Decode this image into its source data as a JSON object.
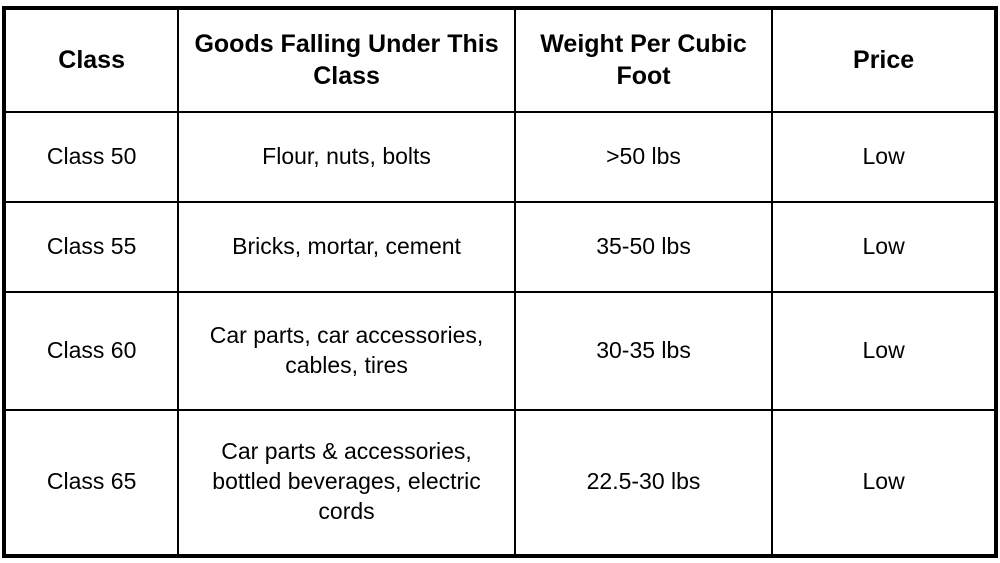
{
  "table": {
    "type": "table",
    "background_color": "#ffffff",
    "border_color": "#000000",
    "border_width": 2,
    "header_fontsize": 25,
    "header_fontweight": 700,
    "cell_fontsize": 23,
    "cell_fontweight": 400,
    "text_color": "#000000",
    "columns": [
      {
        "key": "class",
        "label": "Class",
        "width_pct": 17.5,
        "align": "center"
      },
      {
        "key": "goods",
        "label": "Goods Falling Under This Class",
        "width_pct": 34,
        "align": "center"
      },
      {
        "key": "weight",
        "label": "Weight Per Cubic Foot",
        "width_pct": 26,
        "align": "center"
      },
      {
        "key": "price",
        "label": "Price",
        "width_pct": 22.5,
        "align": "center"
      }
    ],
    "rows": [
      {
        "class": "Class 50",
        "goods": "Flour, nuts, bolts",
        "weight": ">50 lbs",
        "price": "Low"
      },
      {
        "class": "Class 55",
        "goods": "Bricks, mortar, cement",
        "weight": "35-50 lbs",
        "price": "Low"
      },
      {
        "class": "Class 60",
        "goods": "Car parts, car accessories, cables, tires",
        "weight": "30-35 lbs",
        "price": "Low"
      },
      {
        "class": "Class 65",
        "goods": "Car parts & accessories, bottled beverages, electric cords",
        "weight": "22.5-30 lbs",
        "price": "Low"
      }
    ]
  }
}
